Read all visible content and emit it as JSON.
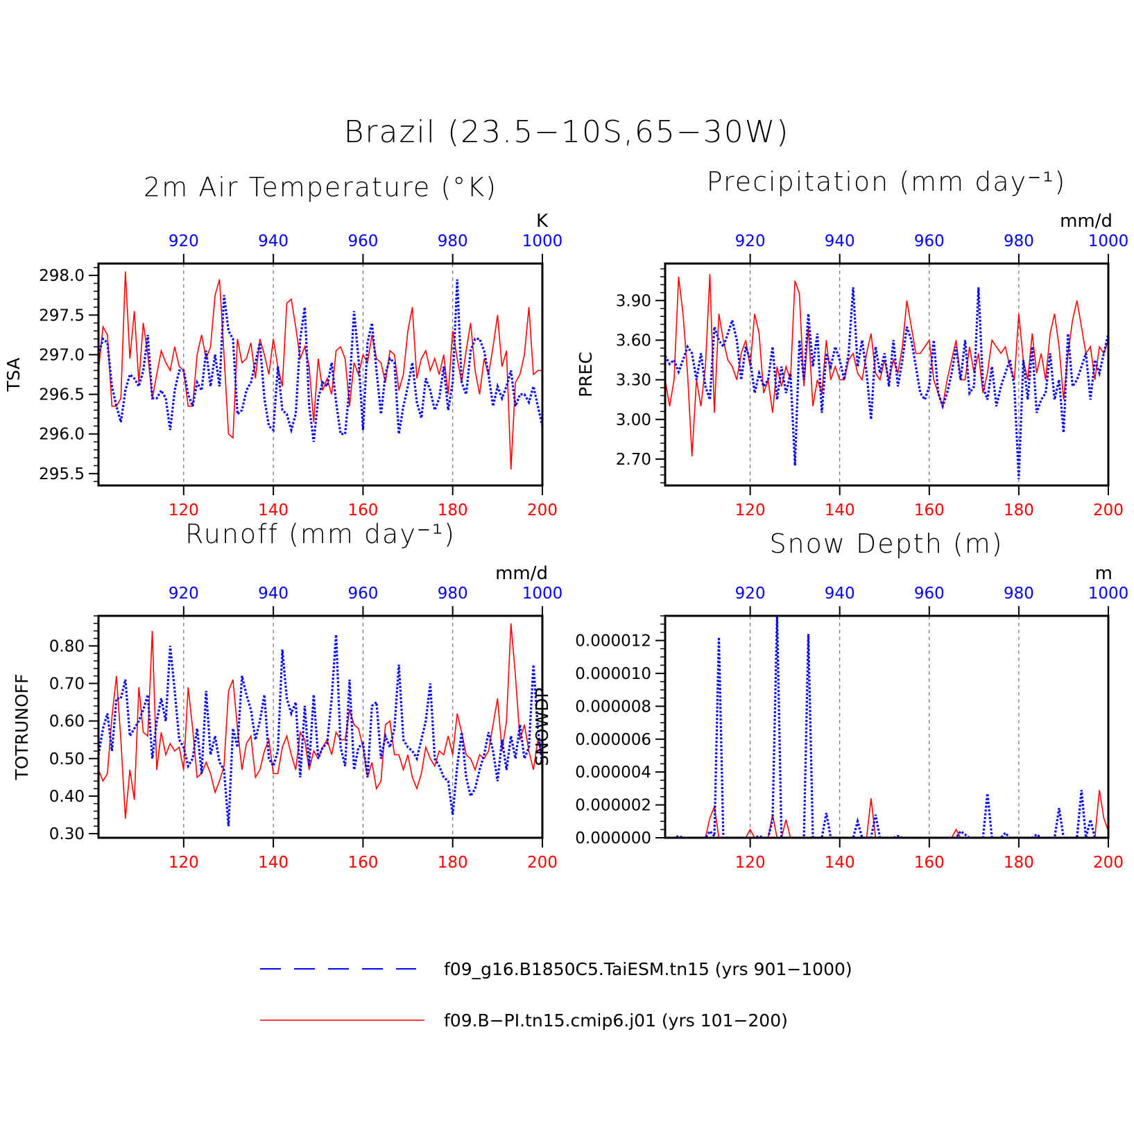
{
  "figure_title": "Brazil (23.5−10S,65−30W)",
  "colors": {
    "red": "#ff0000",
    "blue": "#0000ff",
    "axis": "#000000",
    "grid": "#555555"
  },
  "legend": {
    "items": [
      {
        "label": "f09_g16.B1850C5.TaiESM.tn15 (yrs 901−1000)",
        "color": "#0000ff",
        "style": "dashed"
      },
      {
        "label": "f09.B−PI.tn15.cmip6.j01 (yrs 101−200)",
        "color": "#ff0000",
        "style": "solid"
      }
    ]
  },
  "chart_data": [
    {
      "type": "line",
      "title": "2m Air Temperature (°K)",
      "ylabel": "TSA",
      "units": "K",
      "xlim_bottom": [
        101,
        200
      ],
      "xlim_top": [
        901,
        1000
      ],
      "ylim": [
        295.35,
        298.15
      ],
      "yticks": [
        295.5,
        296.0,
        296.5,
        297.0,
        297.5,
        298.0
      ],
      "ytick_labels": [
        "295.5",
        "296.0",
        "296.5",
        "297.0",
        "297.5",
        "298.0"
      ],
      "yminor_step": 0.1,
      "xticks_bottom": [
        120,
        140,
        160,
        180,
        200
      ],
      "xticks_top": [
        920,
        940,
        960,
        980,
        1000
      ],
      "vertical_grid": "dashed at 120, 140, 160, 180",
      "series": [
        {
          "name": "f09.B−PI.tn15.cmip6.j01 (yrs 101−200)",
          "axis": "bottom",
          "color": "#ff0000",
          "style": "solid",
          "x_start": 101,
          "values": [
            296.8,
            297.35,
            297.25,
            296.35,
            296.35,
            296.45,
            298.05,
            296.95,
            297.55,
            296.65,
            297.4,
            297.0,
            296.45,
            296.75,
            297.05,
            296.9,
            296.8,
            297.1,
            296.85,
            296.8,
            296.35,
            296.35,
            297.0,
            297.25,
            296.95,
            297.1,
            297.75,
            297.95,
            297.0,
            296.0,
            295.95,
            297.2,
            296.9,
            296.95,
            297.15,
            296.7,
            297.2,
            297.0,
            296.75,
            297.2,
            296.85,
            296.6,
            297.65,
            297.7,
            297.35,
            296.95,
            297.1,
            296.85,
            296.15,
            296.95,
            296.55,
            296.7,
            296.5,
            297.05,
            297.1,
            296.95,
            296.35,
            296.9,
            296.75,
            297.0,
            296.9,
            297.25,
            296.95,
            296.9,
            296.65,
            297.05,
            297.0,
            296.55,
            296.75,
            297.3,
            297.6,
            296.7,
            296.95,
            297.05,
            296.8,
            296.95,
            296.75,
            297.0,
            296.5,
            297.3,
            296.95,
            296.65,
            297.05,
            297.4,
            296.8,
            296.5,
            296.95,
            296.75,
            297.1,
            297.5,
            296.85,
            297.05,
            295.55,
            296.65,
            296.75,
            297.0,
            297.6,
            296.75,
            296.8,
            296.8
          ]
        },
        {
          "name": "f09_g16.B1850C5.TaiESM.tn15 (yrs 901−1000)",
          "axis": "top",
          "color": "#0000ff",
          "style": "dashed",
          "x_start": 901,
          "values": [
            297.0,
            297.2,
            297.15,
            296.6,
            296.35,
            296.15,
            296.55,
            296.75,
            296.7,
            296.6,
            296.8,
            297.25,
            296.45,
            296.45,
            296.55,
            296.45,
            296.05,
            296.55,
            296.8,
            296.8,
            296.5,
            296.35,
            296.65,
            296.55,
            297.05,
            296.6,
            297.0,
            296.6,
            297.75,
            297.3,
            297.2,
            296.25,
            296.3,
            296.55,
            296.65,
            296.9,
            297.15,
            296.45,
            296.1,
            296.05,
            296.85,
            296.3,
            296.25,
            296.05,
            296.25,
            297.2,
            297.6,
            296.35,
            295.9,
            296.45,
            296.65,
            296.6,
            296.9,
            296.4,
            296.0,
            296.0,
            296.6,
            297.55,
            296.95,
            296.05,
            297.15,
            297.4,
            296.8,
            296.25,
            296.75,
            296.95,
            296.9,
            296.0,
            296.35,
            296.6,
            296.9,
            296.4,
            296.2,
            296.7,
            296.55,
            296.3,
            296.45,
            296.85,
            296.3,
            296.65,
            297.95,
            296.65,
            296.5,
            297.05,
            297.2,
            297.2,
            297.05,
            296.75,
            296.35,
            296.6,
            296.45,
            296.6,
            296.8,
            296.35,
            296.5,
            296.5,
            296.4,
            296.6,
            296.35,
            296.1
          ]
        }
      ]
    },
    {
      "type": "line",
      "title": "Precipitation (mm day⁻¹)",
      "ylabel": "PREC",
      "units": "mm/d",
      "xlim_bottom": [
        101,
        200
      ],
      "xlim_top": [
        901,
        1000
      ],
      "ylim": [
        2.5,
        4.18
      ],
      "yticks": [
        2.7,
        3.0,
        3.3,
        3.6,
        3.9
      ],
      "ytick_labels": [
        "2.70",
        "3.00",
        "3.30",
        "3.60",
        "3.90"
      ],
      "yminor_step": 0.06,
      "xticks_bottom": [
        120,
        140,
        160,
        180,
        200
      ],
      "xticks_top": [
        920,
        940,
        960,
        980,
        1000
      ],
      "vertical_grid": "dashed at 120, 140, 160, 180",
      "series": [
        {
          "name": "f09.B−PI.tn15.cmip6.j01 (yrs 101−200)",
          "axis": "bottom",
          "color": "#ff0000",
          "style": "solid",
          "x_start": 101,
          "values": [
            3.3,
            3.1,
            3.3,
            4.08,
            3.8,
            3.35,
            2.72,
            3.3,
            3.1,
            3.4,
            4.1,
            3.05,
            3.8,
            3.6,
            3.45,
            3.4,
            3.3,
            3.5,
            3.6,
            3.4,
            3.8,
            3.65,
            3.2,
            3.3,
            3.05,
            3.4,
            3.25,
            3.4,
            3.3,
            4.05,
            3.95,
            3.25,
            3.7,
            3.1,
            3.3,
            3.2,
            3.6,
            3.3,
            3.4,
            3.3,
            3.3,
            3.45,
            3.5,
            3.35,
            3.3,
            3.5,
            3.65,
            3.35,
            3.3,
            3.45,
            3.3,
            3.45,
            3.35,
            3.55,
            3.9,
            3.7,
            3.5,
            3.5,
            3.55,
            3.6,
            3.3,
            3.2,
            3.1,
            3.3,
            3.45,
            3.6,
            3.3,
            3.3,
            3.55,
            3.35,
            3.5,
            3.2,
            3.35,
            3.6,
            3.55,
            3.5,
            3.55,
            3.4,
            3.3,
            3.8,
            3.45,
            3.3,
            3.65,
            3.35,
            3.5,
            3.3,
            3.65,
            3.8,
            3.55,
            3.15,
            3.5,
            3.75,
            3.9,
            3.7,
            3.5,
            3.55,
            3.3,
            3.55,
            3.5,
            3.6
          ]
        },
        {
          "name": "f09_g16.B1850C5.TaiESM.tn15 (yrs 901−1000)",
          "axis": "top",
          "color": "#0000ff",
          "style": "dashed",
          "x_start": 901,
          "values": [
            3.48,
            3.42,
            3.45,
            3.36,
            3.45,
            3.55,
            3.5,
            3.3,
            3.5,
            3.25,
            3.15,
            3.7,
            3.6,
            3.55,
            3.65,
            3.75,
            3.6,
            3.3,
            3.55,
            3.45,
            3.2,
            3.35,
            3.25,
            3.3,
            3.55,
            3.15,
            3.4,
            3.2,
            3.35,
            2.65,
            3.6,
            3.3,
            3.8,
            3.4,
            3.65,
            3.05,
            3.5,
            3.4,
            3.55,
            3.45,
            3.3,
            3.5,
            4.0,
            3.4,
            3.6,
            3.35,
            3.0,
            3.55,
            3.35,
            3.5,
            3.25,
            3.6,
            3.25,
            3.45,
            3.7,
            3.6,
            3.4,
            3.2,
            3.15,
            3.25,
            3.6,
            3.2,
            3.1,
            3.2,
            3.35,
            3.55,
            3.3,
            3.6,
            3.2,
            3.25,
            4.0,
            3.25,
            3.15,
            3.4,
            3.1,
            3.25,
            3.35,
            3.45,
            3.25,
            2.55,
            3.45,
            3.15,
            3.55,
            3.05,
            3.15,
            3.2,
            3.5,
            3.15,
            3.3,
            2.9,
            3.65,
            3.25,
            3.3,
            3.4,
            3.5,
            3.15,
            3.45,
            3.35,
            3.5,
            3.65
          ]
        }
      ]
    },
    {
      "type": "line",
      "title": "Runoff (mm day⁻¹)",
      "ylabel": "TOTRUNOFF",
      "units": "mm/d",
      "xlim_bottom": [
        101,
        200
      ],
      "xlim_top": [
        901,
        1000
      ],
      "ylim": [
        0.289,
        0.88
      ],
      "yticks": [
        0.3,
        0.4,
        0.5,
        0.6,
        0.7,
        0.8
      ],
      "ytick_labels": [
        "0.30",
        "0.40",
        "0.50",
        "0.60",
        "0.70",
        "0.80"
      ],
      "yminor_step": 0.02,
      "xticks_bottom": [
        120,
        140,
        160,
        180,
        200
      ],
      "xticks_top": [
        920,
        940,
        960,
        980,
        1000
      ],
      "vertical_grid": "dashed at 120, 140, 160, 180",
      "series": [
        {
          "name": "f09.B−PI.tn15.cmip6.j01 (yrs 101−200)",
          "axis": "bottom",
          "color": "#ff0000",
          "style": "solid",
          "x_start": 101,
          "values": [
            0.47,
            0.44,
            0.46,
            0.61,
            0.72,
            0.55,
            0.34,
            0.47,
            0.39,
            0.69,
            0.57,
            0.56,
            0.84,
            0.47,
            0.57,
            0.51,
            0.54,
            0.52,
            0.53,
            0.47,
            0.69,
            0.58,
            0.45,
            0.46,
            0.49,
            0.46,
            0.41,
            0.44,
            0.48,
            0.68,
            0.71,
            0.58,
            0.47,
            0.54,
            0.56,
            0.45,
            0.47,
            0.52,
            0.55,
            0.46,
            0.46,
            0.53,
            0.56,
            0.51,
            0.47,
            0.57,
            0.55,
            0.47,
            0.52,
            0.5,
            0.53,
            0.55,
            0.51,
            0.57,
            0.55,
            0.55,
            0.63,
            0.59,
            0.58,
            0.53,
            0.45,
            0.49,
            0.42,
            0.44,
            0.59,
            0.6,
            0.51,
            0.51,
            0.47,
            0.51,
            0.45,
            0.42,
            0.46,
            0.53,
            0.5,
            0.48,
            0.52,
            0.51,
            0.56,
            0.51,
            0.62,
            0.57,
            0.51,
            0.5,
            0.47,
            0.51,
            0.5,
            0.52,
            0.59,
            0.66,
            0.52,
            0.6,
            0.86,
            0.72,
            0.55,
            0.59,
            0.52,
            0.47,
            0.55,
            0.5
          ]
        },
        {
          "name": "f09_g16.B1850C5.TaiESM.tn15 (yrs 901−1000)",
          "axis": "top",
          "color": "#0000ff",
          "style": "dashed",
          "x_start": 901,
          "values": [
            0.51,
            0.58,
            0.62,
            0.52,
            0.66,
            0.66,
            0.71,
            0.56,
            0.58,
            0.6,
            0.63,
            0.67,
            0.5,
            0.6,
            0.66,
            0.6,
            0.8,
            0.68,
            0.55,
            0.53,
            0.48,
            0.5,
            0.58,
            0.46,
            0.68,
            0.51,
            0.56,
            0.49,
            0.47,
            0.32,
            0.58,
            0.53,
            0.72,
            0.67,
            0.63,
            0.55,
            0.6,
            0.67,
            0.5,
            0.48,
            0.52,
            0.79,
            0.66,
            0.62,
            0.65,
            0.45,
            0.64,
            0.48,
            0.67,
            0.5,
            0.53,
            0.54,
            0.66,
            0.83,
            0.53,
            0.48,
            0.71,
            0.47,
            0.53,
            0.54,
            0.45,
            0.64,
            0.65,
            0.5,
            0.56,
            0.53,
            0.58,
            0.75,
            0.55,
            0.53,
            0.52,
            0.5,
            0.55,
            0.6,
            0.7,
            0.5,
            0.48,
            0.45,
            0.44,
            0.35,
            0.48,
            0.57,
            0.45,
            0.4,
            0.42,
            0.47,
            0.51,
            0.57,
            0.52,
            0.44,
            0.55,
            0.47,
            0.56,
            0.5,
            0.59,
            0.5,
            0.53,
            0.75,
            0.58,
            0.48
          ]
        }
      ]
    },
    {
      "type": "line",
      "title": "Snow Depth (m)",
      "ylabel": "SNOWDP",
      "units": "m",
      "xlim_bottom": [
        101,
        200
      ],
      "xlim_top": [
        901,
        1000
      ],
      "ylim": [
        0.0,
        1.35e-05
      ],
      "yticks": [
        0.0,
        2e-06,
        4e-06,
        6e-06,
        8e-06,
        1e-05,
        1.2e-05
      ],
      "ytick_labels": [
        "0.000000",
        "0.000002",
        "0.000004",
        "0.000006",
        "0.000008",
        "0.000010",
        "0.000012"
      ],
      "yminor_step": 5e-07,
      "xticks_bottom": [
        120,
        140,
        160,
        180,
        200
      ],
      "xticks_top": [
        920,
        940,
        960,
        980,
        1000
      ],
      "vertical_grid": "dashed at 120, 140, 160, 180",
      "series": [
        {
          "name": "f09.B−PI.tn15.cmip6.j01 (yrs 101−200)",
          "axis": "bottom",
          "color": "#ff0000",
          "style": "solid",
          "x_start": 101,
          "values": [
            0,
            0,
            0,
            0,
            0,
            0,
            0,
            0,
            0,
            0,
            1.2e-06,
            1.9e-06,
            0,
            0,
            0,
            0,
            0,
            0,
            0,
            5e-07,
            0,
            0,
            0,
            0,
            1.4e-06,
            0,
            0,
            1.1e-06,
            0,
            0,
            0,
            0,
            0,
            0,
            0,
            0,
            0,
            0,
            0,
            0,
            0,
            0,
            0,
            0,
            0,
            0,
            2.4e-06,
            0,
            0,
            0,
            0,
            0,
            0,
            0,
            0,
            0,
            0,
            0,
            0,
            0,
            0,
            0,
            0,
            0,
            0,
            5e-07,
            0,
            0,
            0,
            0,
            0,
            0,
            0,
            0,
            0,
            0,
            0,
            0,
            0,
            0,
            0,
            0,
            0,
            0,
            0,
            0,
            0,
            0,
            0,
            0,
            0,
            0,
            0,
            0,
            0,
            0,
            0,
            2.9e-06,
            1.2e-06,
            4e-07
          ]
        },
        {
          "name": "f09_g16.B1850C5.TaiESM.tn15 (yrs 901−1000)",
          "axis": "top",
          "color": "#0000ff",
          "style": "dashed",
          "x_start": 901,
          "values": [
            0,
            0,
            0,
            1e-07,
            0,
            0,
            0,
            0,
            0,
            0,
            4e-07,
            1e-07,
            1.22e-05,
            0,
            0,
            0,
            0,
            0,
            0,
            0,
            0,
            1e-07,
            0,
            0,
            1.1e-06,
            1.35e-05,
            0,
            0,
            0,
            0,
            0,
            0,
            1.24e-05,
            0,
            0,
            0,
            1.5e-06,
            0,
            0,
            0,
            0,
            0,
            0,
            1e-06,
            0,
            0,
            0,
            1.4e-06,
            0,
            0,
            0,
            0,
            1e-07,
            0,
            0,
            0,
            0,
            0,
            0,
            0,
            0,
            0,
            0,
            0,
            0,
            0,
            4e-07,
            2e-07,
            0,
            0,
            0,
            0,
            2.7e-06,
            0,
            0,
            0,
            3e-07,
            0,
            0,
            0,
            0,
            0,
            0,
            2e-07,
            0,
            0,
            0,
            0,
            1.8e-06,
            0,
            0,
            0,
            0,
            2.9e-06,
            0,
            1.1e-06,
            0,
            0,
            0,
            0
          ]
        }
      ]
    }
  ]
}
